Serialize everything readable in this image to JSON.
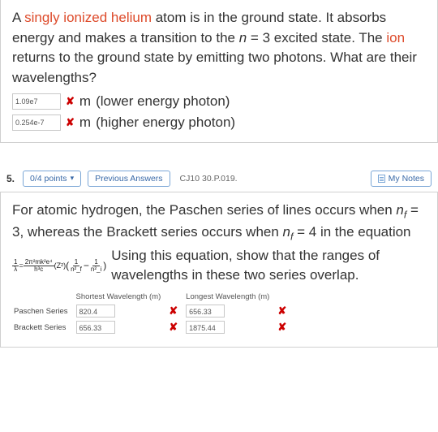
{
  "q1": {
    "text_parts": {
      "p1": "A ",
      "hl1": "singly ionized helium",
      "p2": " atom is in the ground state. It absorbs energy and makes a transition to the ",
      "nvar": "n",
      "p3": " = 3 excited state. The ",
      "hl2": "ion",
      "p4": " returns to the ground state by emitting two photons. What are their wavelengths?"
    },
    "answers": {
      "lower": {
        "value": "1.09e7",
        "unit": "m",
        "label": "(lower energy photon)"
      },
      "higher": {
        "value": "0.254e-7",
        "unit": "m",
        "label": "(higher energy photon)"
      }
    }
  },
  "q2": {
    "number": "5.",
    "points": "0/4 points",
    "prev": "Previous Answers",
    "qid": "CJ10 30.P.019.",
    "notes": "My Notes",
    "text_parts": {
      "p1": "For atomic hydrogen, the Paschen series of lines occurs when ",
      "nf": "n",
      "fsub": "f",
      "p2": " = 3, whereas the Brackett series occurs when ",
      "p3": " = 4 in the equation",
      "p4": "Using this equation, show that the ranges of wavelengths in these two series overlap."
    },
    "formula": {
      "lhs_num": "1",
      "lhs_den": "λ",
      "eq": " = ",
      "rhs_num": "2π²mk²e⁴",
      "rhs_den": "h³c",
      "z": "(Z²)",
      "pL": "(",
      "t1_num": "1",
      "t1_den": "n²_f",
      "minus": " − ",
      "t2_num": "1",
      "t2_den": "n²_i",
      "pR": ")"
    },
    "table": {
      "h_short": "Shortest Wavelength (m)",
      "h_long": "Longest Wavelength (m)",
      "rows": [
        {
          "label": "Paschen Series",
          "short": "820.4",
          "long": "656.33"
        },
        {
          "label": "Brackett Series",
          "short": "656.33",
          "long": "1875.44"
        }
      ]
    }
  }
}
